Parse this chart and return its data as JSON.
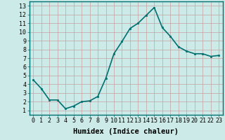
{
  "x": [
    0,
    1,
    2,
    3,
    4,
    5,
    6,
    7,
    8,
    9,
    10,
    11,
    12,
    13,
    14,
    15,
    16,
    17,
    18,
    19,
    20,
    21,
    22,
    23
  ],
  "y": [
    4.5,
    3.5,
    2.2,
    2.2,
    1.2,
    1.5,
    2.0,
    2.1,
    2.6,
    4.7,
    7.5,
    8.9,
    10.4,
    11.0,
    11.9,
    12.8,
    10.5,
    9.5,
    8.3,
    7.8,
    7.5,
    7.5,
    7.2,
    7.3
  ],
  "line_color": "#007070",
  "marker": "s",
  "marker_size": 2.0,
  "xlabel": "Humidex (Indice chaleur)",
  "xlim": [
    -0.5,
    23.5
  ],
  "ylim": [
    0.5,
    13.5
  ],
  "yticks": [
    1,
    2,
    3,
    4,
    5,
    6,
    7,
    8,
    9,
    10,
    11,
    12,
    13
  ],
  "xticks": [
    0,
    1,
    2,
    3,
    4,
    5,
    6,
    7,
    8,
    9,
    10,
    11,
    12,
    13,
    14,
    15,
    16,
    17,
    18,
    19,
    20,
    21,
    22,
    23
  ],
  "bg_color": "#cceae8",
  "grid_color": "#c4a0a0",
  "xlabel_fontsize": 7.5,
  "tick_fontsize": 6.0,
  "line_width": 1.2
}
